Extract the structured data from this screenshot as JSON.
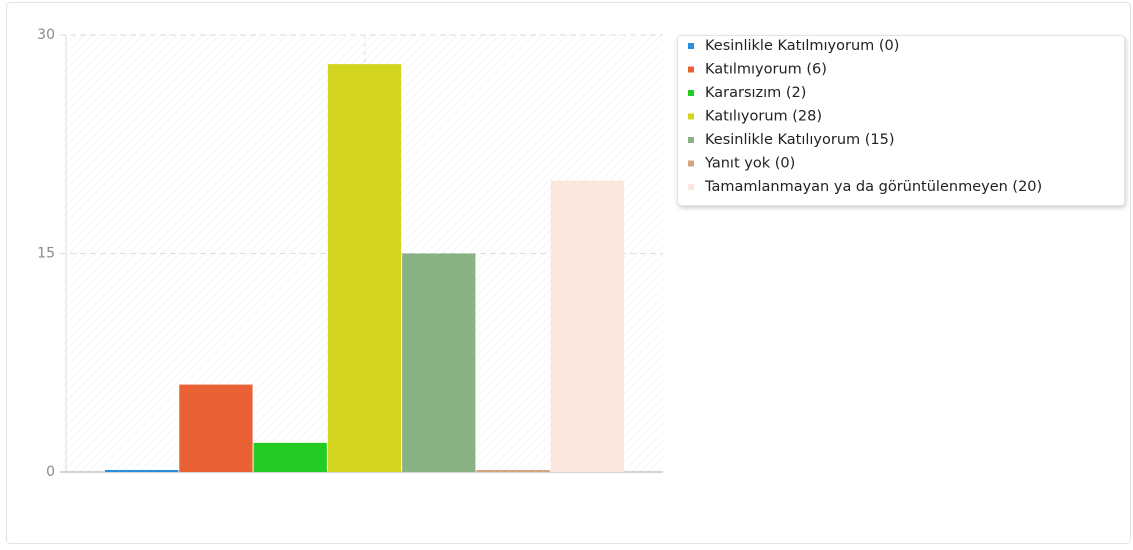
{
  "chart_data": {
    "type": "bar",
    "categories": [
      "Kesinlikle Katılmıyorum (0)",
      "Katılmıyorum (6)",
      "Kararsızım (2)",
      "Katılıyorum (28)",
      "Kesinlikle Katılıyorum (15)",
      "Yanıt yok (0)",
      "Tamamlanmayan ya da görüntülenmeyen (20)"
    ],
    "values": [
      0,
      6,
      2,
      28,
      15,
      0,
      20
    ],
    "colors": [
      "#2a8ee0",
      "#e86033",
      "#22cc22",
      "#d3d41d",
      "#88b283",
      "#d1a57f",
      "#fbe6de"
    ],
    "ylim": [
      0,
      30
    ],
    "yticks": [
      0,
      15,
      30
    ],
    "grid": true,
    "legend": "right"
  }
}
